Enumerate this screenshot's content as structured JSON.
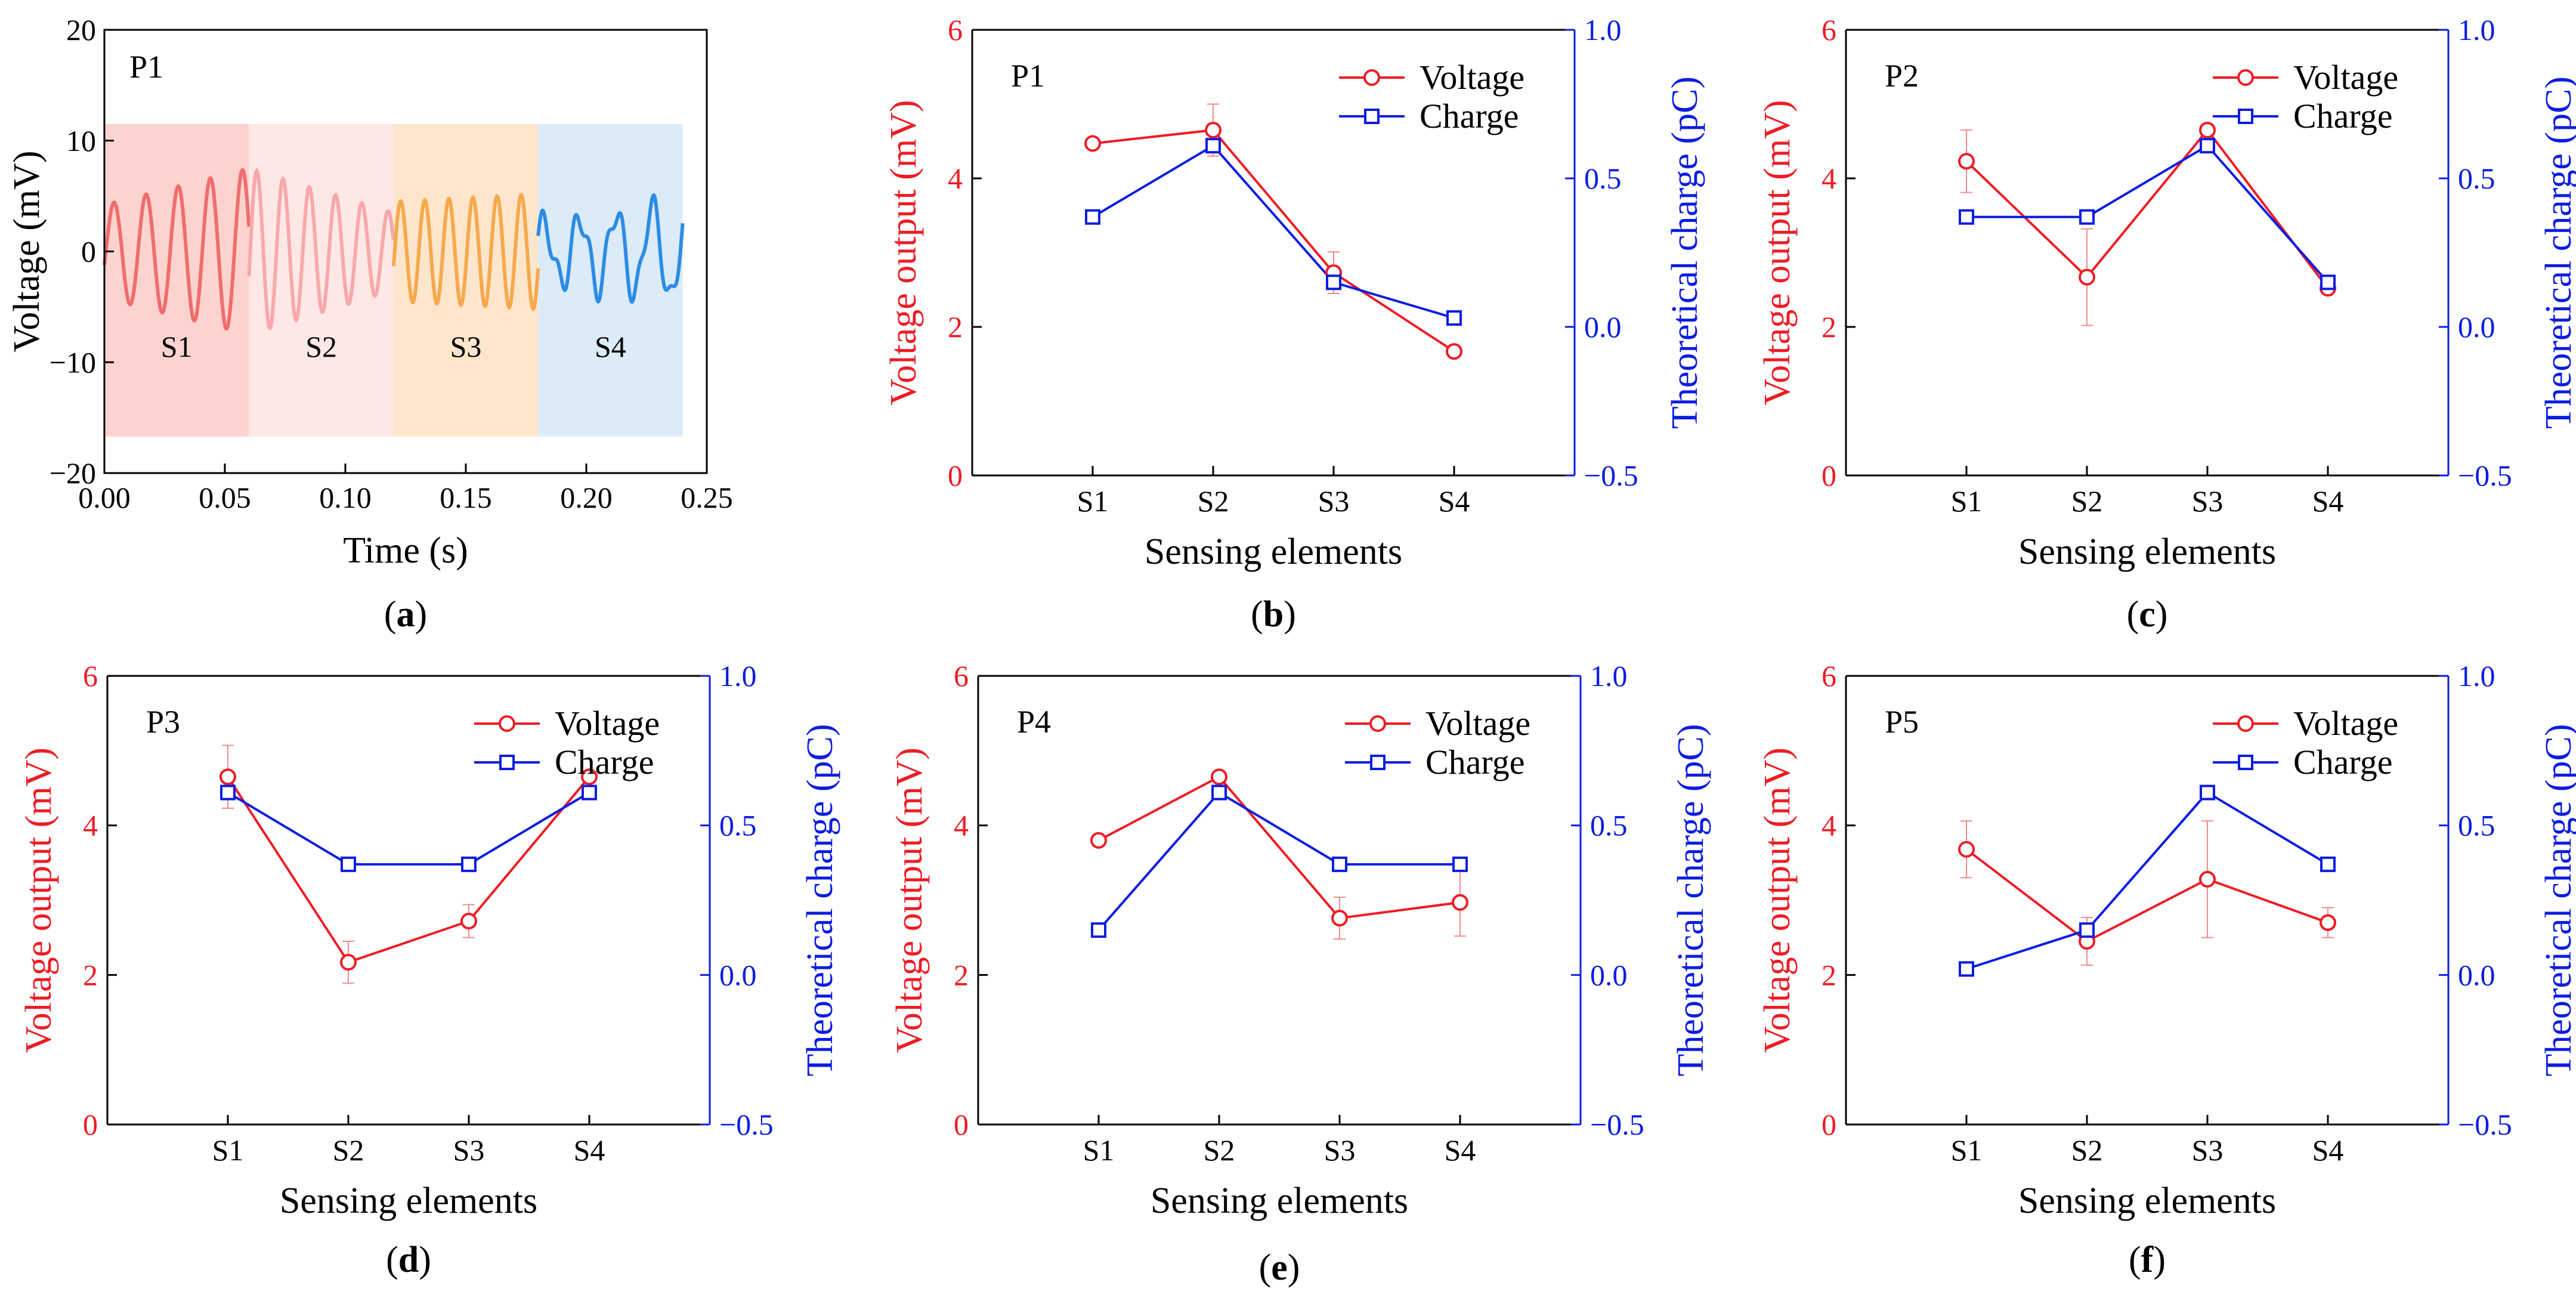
{
  "figure": {
    "type": "multi-panel chart"
  },
  "colors": {
    "voltage": "#ee1c25",
    "charge": "#0c1de0",
    "axis": "#000000",
    "segments": [
      "#fdd3cf",
      "#fde8e6",
      "#fde6cc",
      "#dcebf8"
    ],
    "signals": [
      "#f06d6d",
      "#f7a8ab",
      "#f5a94e",
      "#2d8ce3"
    ]
  },
  "chart_data": [
    {
      "id": "a",
      "type": "line",
      "panel_label": "a",
      "title": "P1",
      "xlabel": "Time (s)",
      "ylabel": "Voltage (mV)",
      "xlim": [
        0,
        0.25
      ],
      "ylim": [
        -20,
        20
      ],
      "xticks": [
        "0.00",
        "0.05",
        "0.10",
        "0.15",
        "0.20",
        "0.25"
      ],
      "yticks": [
        "−20",
        "−10",
        "0",
        "10",
        "20"
      ],
      "segments": [
        {
          "name": "S1",
          "x_range": [
            0.0,
            0.06
          ],
          "y_range": [
            -16.7,
            11.5
          ],
          "mean": 0,
          "amplitude": [
            4.2,
            7.5
          ],
          "cycles": 4.5
        },
        {
          "name": "S2",
          "x_range": [
            0.06,
            0.12
          ],
          "y_range": [
            -16.7,
            11.5
          ],
          "mean": 0,
          "amplitude": [
            7.5,
            3.5
          ],
          "cycles": 5.5
        },
        {
          "name": "S3",
          "x_range": [
            0.12,
            0.18
          ],
          "y_range": [
            -16.7,
            11.5
          ],
          "mean": 0,
          "amplitude": [
            4.5,
            5.2
          ],
          "cycles": 6.0
        },
        {
          "name": "S4",
          "x_range": [
            0.18,
            0.24
          ],
          "y_range": [
            -16.7,
            11.5
          ],
          "mean": 0,
          "amplitude": [
            2.5,
            4.5
          ],
          "cycles": 4.0
        }
      ]
    },
    {
      "id": "b",
      "type": "line",
      "panel_label": "b",
      "title": "P1",
      "xlabel": "Sensing elements",
      "ylabel": "Voltage output (mV)",
      "y2label": "Theoretical charge (pC)",
      "categories": [
        "S1",
        "S2",
        "S3",
        "S4"
      ],
      "ylim": [
        0,
        6
      ],
      "y2lim": [
        -0.5,
        1.0
      ],
      "yticks": [
        "0",
        "2",
        "4",
        "6"
      ],
      "y2ticks": [
        "−0.5",
        "0.0",
        "0.5",
        "1.0"
      ],
      "legend": [
        "Voltage",
        "Charge"
      ],
      "series": [
        {
          "name": "Voltage",
          "axis": "left",
          "values": [
            4.47,
            4.65,
            2.73,
            1.67
          ],
          "errors": [
            0.0,
            0.35,
            0.28,
            0.0
          ]
        },
        {
          "name": "Charge",
          "axis": "right",
          "values": [
            0.37,
            0.61,
            0.15,
            0.03
          ]
        }
      ]
    },
    {
      "id": "c",
      "type": "line",
      "panel_label": "c",
      "title": "P2",
      "xlabel": "Sensing elements",
      "ylabel": "Voltage output (mV)",
      "y2label": "Theoretical charge (pC)",
      "categories": [
        "S1",
        "S2",
        "S3",
        "S4"
      ],
      "ylim": [
        0,
        6
      ],
      "y2lim": [
        -0.5,
        1.0
      ],
      "yticks": [
        "0",
        "2",
        "4",
        "6"
      ],
      "y2ticks": [
        "−0.5",
        "0.0",
        "0.5",
        "1.0"
      ],
      "legend": [
        "Voltage",
        "Charge"
      ],
      "series": [
        {
          "name": "Voltage",
          "axis": "left",
          "values": [
            4.23,
            2.67,
            4.65,
            2.52
          ],
          "errors": [
            0.42,
            0.65,
            0.0,
            0.0
          ]
        },
        {
          "name": "Charge",
          "axis": "right",
          "values": [
            0.37,
            0.37,
            0.61,
            0.15
          ]
        }
      ]
    },
    {
      "id": "d",
      "type": "line",
      "panel_label": "d",
      "title": "P3",
      "xlabel": "Sensing elements",
      "ylabel": "Voltage output (mV)",
      "y2label": "Theoretical charge (pC)",
      "categories": [
        "S1",
        "S2",
        "S3",
        "S4"
      ],
      "ylim": [
        0,
        6
      ],
      "y2lim": [
        -0.5,
        1.0
      ],
      "yticks": [
        "0",
        "2",
        "4",
        "6"
      ],
      "y2ticks": [
        "−0.5",
        "0.0",
        "0.5",
        "1.0"
      ],
      "legend": [
        "Voltage",
        "Charge"
      ],
      "series": [
        {
          "name": "Voltage",
          "axis": "left",
          "values": [
            4.65,
            2.17,
            2.72,
            4.65
          ],
          "errors": [
            0.42,
            0.28,
            0.22,
            0.0
          ]
        },
        {
          "name": "Charge",
          "axis": "right",
          "values": [
            0.61,
            0.37,
            0.37,
            0.61
          ]
        }
      ]
    },
    {
      "id": "e",
      "type": "line",
      "panel_label": "e",
      "title": "P4",
      "xlabel": "Sensing elements",
      "ylabel": "Voltage output (mV)",
      "y2label": "Theoretical charge (pC)",
      "categories": [
        "S1",
        "S2",
        "S3",
        "S4"
      ],
      "ylim": [
        0,
        6
      ],
      "y2lim": [
        -0.5,
        1.0
      ],
      "yticks": [
        "0",
        "2",
        "4",
        "6"
      ],
      "y2ticks": [
        "−0.5",
        "0.0",
        "0.5",
        "1.0"
      ],
      "legend": [
        "Voltage",
        "Charge"
      ],
      "series": [
        {
          "name": "Voltage",
          "axis": "left",
          "values": [
            3.8,
            4.65,
            2.76,
            2.97
          ],
          "errors": [
            0.0,
            0.0,
            0.28,
            0.45
          ]
        },
        {
          "name": "Charge",
          "axis": "right",
          "values": [
            0.15,
            0.61,
            0.37,
            0.37
          ]
        }
      ]
    },
    {
      "id": "f",
      "type": "line",
      "panel_label": "f",
      "title": "P5",
      "xlabel": "Sensing elements",
      "ylabel": "Voltage output (mV)",
      "y2label": "Theoretical charge (pC)",
      "categories": [
        "S1",
        "S2",
        "S3",
        "S4"
      ],
      "ylim": [
        0,
        6
      ],
      "y2lim": [
        -0.5,
        1.0
      ],
      "yticks": [
        "0",
        "2",
        "4",
        "6"
      ],
      "y2ticks": [
        "−0.5",
        "0.0",
        "0.5",
        "1.0"
      ],
      "legend": [
        "Voltage",
        "Charge"
      ],
      "series": [
        {
          "name": "Voltage",
          "axis": "left",
          "values": [
            3.68,
            2.45,
            3.28,
            2.7
          ],
          "errors": [
            0.38,
            0.32,
            0.78,
            0.2
          ]
        },
        {
          "name": "Charge",
          "axis": "right",
          "values": [
            0.02,
            0.15,
            0.61,
            0.37
          ]
        }
      ]
    }
  ]
}
